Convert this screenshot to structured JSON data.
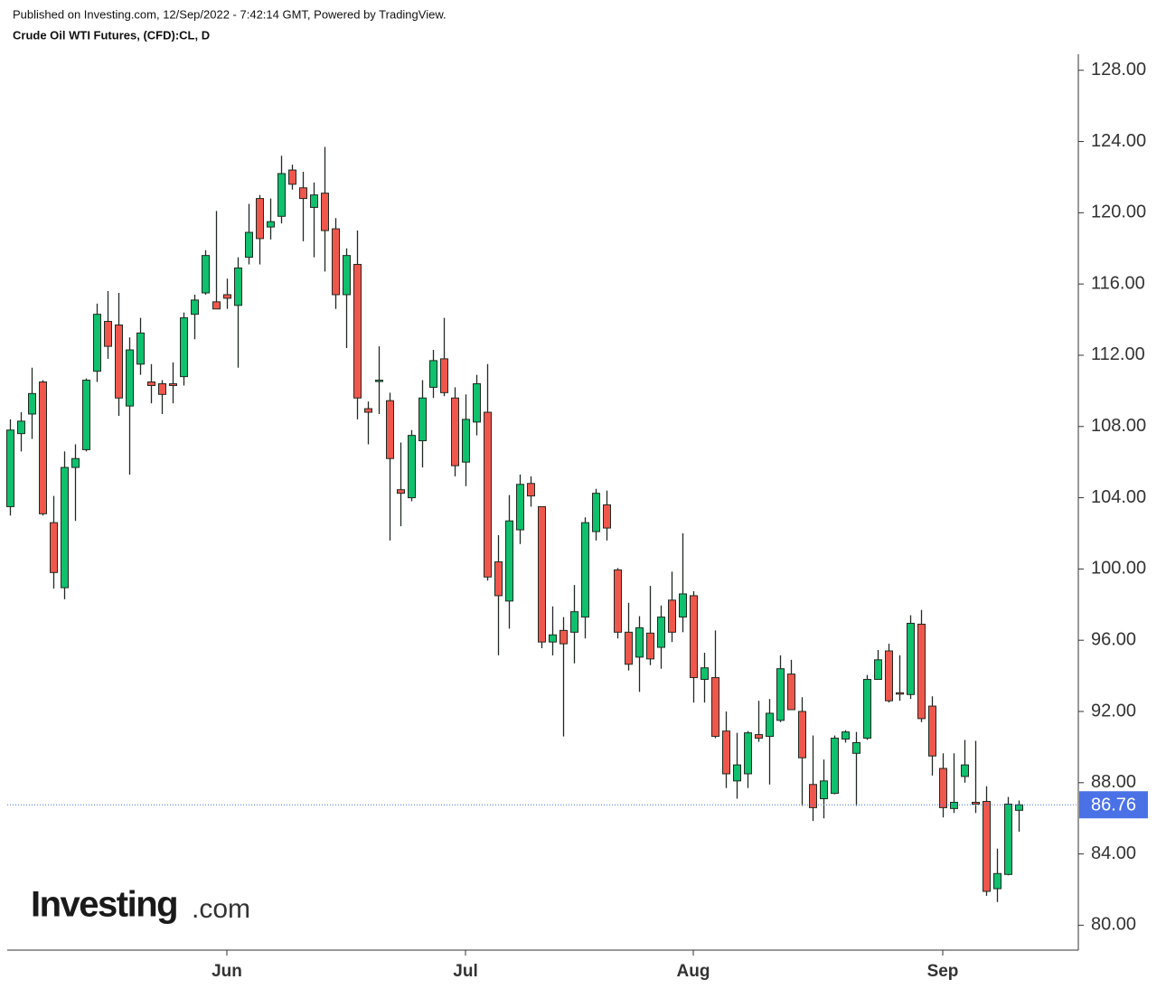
{
  "header": {
    "published": "Published on Investing.com, 12/Sep/2022 - 7:42:14 GMT, Powered by TradingView.",
    "instrument": "Crude Oil WTI Futures, (CFD):CL, D"
  },
  "logo": {
    "name": "Investing",
    "suffix": ".com"
  },
  "chart_data": {
    "type": "candlestick",
    "categories": [
      null,
      null,
      null,
      null,
      null,
      null,
      null,
      null,
      null,
      null,
      null,
      null,
      null,
      null,
      null,
      null,
      null,
      null,
      null,
      null,
      "Jun",
      null,
      null,
      null,
      null,
      null,
      null,
      null,
      null,
      null,
      null,
      null,
      null,
      null,
      null,
      null,
      null,
      null,
      null,
      null,
      null,
      null,
      "Jul",
      null,
      null,
      null,
      null,
      null,
      null,
      null,
      null,
      null,
      null,
      null,
      null,
      null,
      null,
      null,
      null,
      null,
      null,
      null,
      null,
      "Aug",
      null,
      null,
      null,
      null,
      null,
      null,
      null,
      null,
      null,
      null,
      null,
      null,
      null,
      null,
      null,
      null,
      null,
      null,
      null,
      null,
      null,
      null,
      "Sep",
      null,
      null,
      null,
      null,
      null,
      null,
      null
    ],
    "open": [
      103.5,
      107.6,
      108.7,
      110.5,
      102.6,
      98.95,
      105.7,
      106.7,
      111.1,
      113.9,
      113.7,
      109.15,
      111.5,
      110.5,
      110.4,
      110.4,
      110.8,
      114.3,
      115.5,
      115.0,
      115.4,
      114.8,
      117.5,
      120.8,
      119.2,
      119.8,
      122.4,
      121.4,
      120.3,
      121.1,
      119.1,
      115.4,
      117.1,
      109.0,
      110.55,
      109.45,
      104.45,
      104.0,
      107.2,
      110.2,
      111.8,
      109.6,
      106.0,
      108.25,
      108.8,
      100.4,
      98.2,
      102.2,
      104.8,
      103.5,
      95.9,
      96.55,
      96.45,
      97.3,
      102.1,
      103.6,
      99.95,
      96.45,
      95.05,
      96.4,
      95.6,
      98.25,
      97.3,
      98.5,
      93.8,
      93.9,
      90.9,
      88.1,
      88.5,
      90.7,
      90.6,
      91.5,
      94.1,
      92.0,
      87.9,
      87.1,
      87.4,
      90.45,
      89.65,
      90.5,
      93.8,
      95.4,
      93.05,
      92.95,
      96.9,
      92.3,
      88.8,
      86.55,
      88.35,
      86.9,
      86.95,
      82.05,
      82.85,
      86.45
    ],
    "high": [
      108.4,
      108.8,
      111.3,
      110.6,
      104.1,
      106.6,
      107.0,
      110.7,
      114.9,
      115.6,
      115.5,
      113.0,
      114.1,
      111.5,
      110.6,
      111.6,
      114.4,
      115.4,
      117.9,
      120.1,
      116.3,
      117.5,
      120.5,
      121.0,
      120.8,
      123.2,
      122.7,
      122.3,
      121.7,
      123.7,
      119.7,
      118.0,
      119.0,
      109.4,
      112.5,
      109.9,
      107.1,
      107.8,
      110.6,
      112.3,
      114.1,
      110.2,
      109.8,
      110.9,
      111.5,
      101.9,
      104.15,
      105.3,
      105.2,
      103.5,
      97.9,
      97.3,
      99.1,
      102.9,
      104.5,
      104.4,
      100.05,
      98.1,
      97.35,
      99.05,
      97.95,
      99.85,
      102.0,
      98.75,
      95.3,
      96.55,
      92.0,
      90.8,
      90.9,
      92.6,
      92.7,
      95.15,
      94.9,
      92.8,
      90.65,
      89.3,
      90.65,
      90.95,
      90.85,
      94.05,
      95.45,
      95.8,
      95.15,
      97.4,
      97.7,
      92.85,
      89.65,
      89.65,
      90.4,
      90.35,
      87.8,
      84.3,
      87.2,
      87.0
    ],
    "low": [
      103.0,
      106.6,
      107.3,
      103.0,
      98.9,
      98.3,
      102.7,
      106.6,
      110.5,
      111.8,
      108.6,
      105.3,
      110.9,
      109.3,
      108.7,
      109.3,
      110.3,
      112.9,
      115.4,
      114.6,
      114.6,
      111.3,
      117.1,
      117.1,
      118.5,
      119.4,
      121.3,
      118.4,
      117.5,
      116.7,
      114.6,
      112.4,
      108.4,
      107.0,
      108.7,
      101.6,
      102.4,
      103.8,
      105.7,
      109.6,
      109.7,
      105.2,
      104.65,
      107.5,
      99.35,
      95.15,
      96.65,
      101.4,
      103.5,
      95.55,
      95.15,
      90.6,
      94.7,
      96.1,
      101.6,
      101.6,
      96.1,
      94.3,
      93.1,
      94.6,
      94.4,
      95.9,
      96.45,
      92.5,
      92.5,
      90.5,
      87.7,
      87.1,
      87.7,
      90.3,
      87.9,
      91.4,
      92.1,
      86.7,
      85.85,
      86.0,
      87.35,
      90.25,
      86.7,
      90.4,
      93.8,
      92.5,
      92.6,
      92.7,
      91.4,
      88.4,
      86.05,
      86.3,
      88.0,
      86.3,
      81.65,
      81.3,
      82.8,
      85.25
    ],
    "close": [
      107.8,
      108.3,
      109.85,
      103.1,
      99.8,
      105.7,
      106.2,
      110.6,
      114.3,
      112.5,
      109.6,
      112.3,
      113.25,
      110.3,
      109.8,
      110.3,
      114.1,
      115.1,
      117.6,
      114.6,
      115.2,
      116.9,
      118.9,
      118.55,
      119.5,
      122.2,
      121.6,
      120.8,
      121.0,
      119.0,
      115.4,
      117.6,
      109.6,
      108.8,
      110.6,
      106.2,
      104.25,
      107.5,
      109.6,
      111.7,
      109.9,
      105.8,
      108.4,
      110.4,
      99.55,
      98.5,
      102.7,
      104.75,
      104.1,
      95.9,
      96.3,
      95.8,
      97.6,
      102.6,
      104.25,
      102.3,
      96.45,
      94.65,
      96.7,
      94.95,
      97.3,
      96.45,
      98.6,
      93.9,
      94.45,
      90.6,
      88.5,
      89.0,
      90.8,
      90.5,
      91.9,
      94.4,
      92.1,
      89.4,
      86.6,
      88.1,
      90.5,
      90.85,
      90.25,
      93.8,
      94.9,
      92.6,
      93.0,
      96.95,
      91.6,
      89.5,
      86.6,
      86.9,
      89.0,
      86.8,
      81.9,
      82.9,
      86.8,
      86.76
    ],
    "up_color": "#0fc06c",
    "down_color": "#f0574c",
    "outline_color": "#1f2a22",
    "ylim": [
      78.6,
      128.9
    ],
    "yticks": [
      {
        "value": 80,
        "label": "80.00"
      },
      {
        "value": 84,
        "label": "84.00"
      },
      {
        "value": 88,
        "label": "88.00"
      },
      {
        "value": 92,
        "label": "92.00"
      },
      {
        "value": 96,
        "label": "96.00"
      },
      {
        "value": 100,
        "label": "100.00"
      },
      {
        "value": 104,
        "label": "104.00"
      },
      {
        "value": 108,
        "label": "108.00"
      },
      {
        "value": 112,
        "label": "112.00"
      },
      {
        "value": 116,
        "label": "116.00"
      },
      {
        "value": 120,
        "label": "120.00"
      },
      {
        "value": 124,
        "label": "124.00"
      },
      {
        "value": 128,
        "label": "128.00"
      }
    ],
    "last_price": 86.76,
    "last_price_color": "#4a72e6"
  }
}
